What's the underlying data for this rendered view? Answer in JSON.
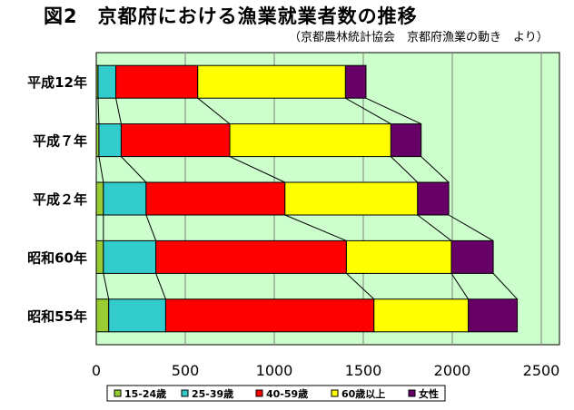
{
  "title": "図2　京都府における漁業就業者数の推移",
  "subtitle": "（京都農林統計協会　京都府漁業の動き　より）",
  "chart_data": {
    "type": "bar",
    "orientation": "horizontal",
    "stacked": true,
    "categories": [
      "平成12年",
      "平成７年",
      "平成２年",
      "昭和60年",
      "昭和55年"
    ],
    "series": [
      {
        "name": "15-24歳",
        "color": "#99cc33",
        "values": [
          10,
          15,
          40,
          40,
          70
        ]
      },
      {
        "name": "25-39歳",
        "color": "#33cccc",
        "values": [
          100,
          125,
          240,
          295,
          320
        ]
      },
      {
        "name": "40-59歳",
        "color": "#ff0000",
        "values": [
          460,
          610,
          780,
          1070,
          1170
        ]
      },
      {
        "name": "60歳以上",
        "color": "#ffff00",
        "values": [
          830,
          905,
          745,
          590,
          530
        ]
      },
      {
        "name": "女性",
        "color": "#660066",
        "values": [
          115,
          170,
          175,
          235,
          275
        ]
      }
    ],
    "xlim": [
      0,
      2500
    ],
    "xticks": [
      0,
      500,
      1000,
      1500,
      2000,
      2500
    ],
    "grid": true,
    "legend_position": "bottom",
    "background_color": "#ccffcc"
  }
}
